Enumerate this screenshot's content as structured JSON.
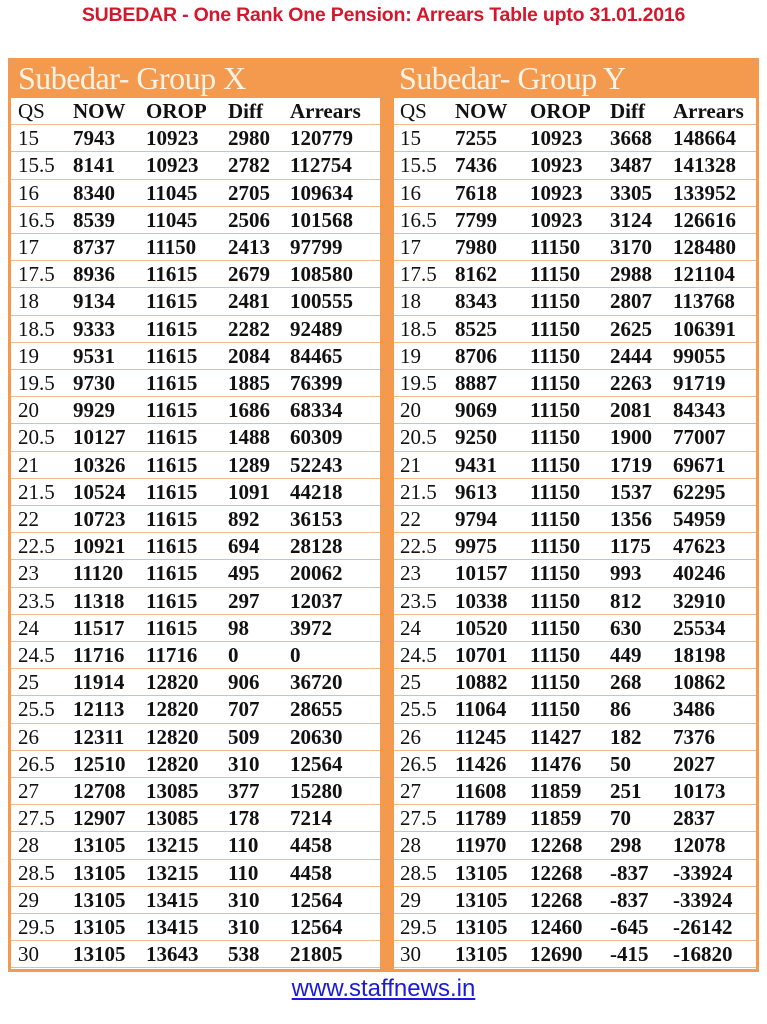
{
  "title": "SUBEDAR - One Rank One Pension: Arrears Table upto 31.01.2016",
  "colors": {
    "title": "#d3172c",
    "accent": "#f39a4e",
    "link": "#1a1adb"
  },
  "footer_link": "www.staffnews.in",
  "groups": [
    {
      "heading": "Subedar- Group X",
      "columns": [
        "QS",
        "NOW",
        "OROP",
        "Diff",
        "Arrears"
      ],
      "rows": [
        [
          "15",
          "7943",
          "10923",
          "2980",
          "120779"
        ],
        [
          "15.5",
          "8141",
          "10923",
          "2782",
          "112754"
        ],
        [
          "16",
          "8340",
          "11045",
          "2705",
          "109634"
        ],
        [
          "16.5",
          "8539",
          "11045",
          "2506",
          "101568"
        ],
        [
          "17",
          "8737",
          "11150",
          "2413",
          "97799"
        ],
        [
          "17.5",
          "8936",
          "11615",
          "2679",
          "108580"
        ],
        [
          "18",
          "9134",
          "11615",
          "2481",
          "100555"
        ],
        [
          "18.5",
          "9333",
          "11615",
          "2282",
          "92489"
        ],
        [
          "19",
          "9531",
          "11615",
          "2084",
          "84465"
        ],
        [
          "19.5",
          "9730",
          "11615",
          "1885",
          "76399"
        ],
        [
          "20",
          "9929",
          "11615",
          "1686",
          "68334"
        ],
        [
          "20.5",
          "10127",
          "11615",
          "1488",
          "60309"
        ],
        [
          "21",
          "10326",
          "11615",
          "1289",
          "52243"
        ],
        [
          "21.5",
          "10524",
          "11615",
          "1091",
          "44218"
        ],
        [
          "22",
          "10723",
          "11615",
          "892",
          "36153"
        ],
        [
          "22.5",
          "10921",
          "11615",
          "694",
          "28128"
        ],
        [
          "23",
          "11120",
          "11615",
          "495",
          "20062"
        ],
        [
          "23.5",
          "11318",
          "11615",
          "297",
          "12037"
        ],
        [
          "24",
          "11517",
          "11615",
          "98",
          "3972"
        ],
        [
          "24.5",
          "11716",
          "11716",
          "0",
          "0"
        ],
        [
          "25",
          "11914",
          "12820",
          "906",
          "36720"
        ],
        [
          "25.5",
          "12113",
          "12820",
          "707",
          "28655"
        ],
        [
          "26",
          "12311",
          "12820",
          "509",
          "20630"
        ],
        [
          "26.5",
          "12510",
          "12820",
          "310",
          "12564"
        ],
        [
          "27",
          "12708",
          "13085",
          "377",
          "15280"
        ],
        [
          "27.5",
          "12907",
          "13085",
          "178",
          "7214"
        ],
        [
          "28",
          "13105",
          "13215",
          "110",
          "4458"
        ],
        [
          "28.5",
          "13105",
          "13215",
          "110",
          "4458"
        ],
        [
          "29",
          "13105",
          "13415",
          "310",
          "12564"
        ],
        [
          "29.5",
          "13105",
          "13415",
          "310",
          "12564"
        ],
        [
          "30",
          "13105",
          "13643",
          "538",
          "21805"
        ]
      ]
    },
    {
      "heading": "Subedar- Group Y",
      "columns": [
        "QS",
        "NOW",
        "OROP",
        "Diff",
        "Arrears"
      ],
      "rows": [
        [
          "15",
          "7255",
          "10923",
          "3668",
          "148664"
        ],
        [
          "15.5",
          "7436",
          "10923",
          "3487",
          "141328"
        ],
        [
          "16",
          "7618",
          "10923",
          "3305",
          "133952"
        ],
        [
          "16.5",
          "7799",
          "10923",
          "3124",
          "126616"
        ],
        [
          "17",
          "7980",
          "11150",
          "3170",
          "128480"
        ],
        [
          "17.5",
          "8162",
          "11150",
          "2988",
          "121104"
        ],
        [
          "18",
          "8343",
          "11150",
          "2807",
          "113768"
        ],
        [
          "18.5",
          "8525",
          "11150",
          "2625",
          "106391"
        ],
        [
          "19",
          "8706",
          "11150",
          "2444",
          "99055"
        ],
        [
          "19.5",
          "8887",
          "11150",
          "2263",
          "91719"
        ],
        [
          "20",
          "9069",
          "11150",
          "2081",
          "84343"
        ],
        [
          "20.5",
          "9250",
          "11150",
          "1900",
          "77007"
        ],
        [
          "21",
          "9431",
          "11150",
          "1719",
          "69671"
        ],
        [
          "21.5",
          "9613",
          "11150",
          "1537",
          "62295"
        ],
        [
          "22",
          "9794",
          "11150",
          "1356",
          "54959"
        ],
        [
          "22.5",
          "9975",
          "11150",
          "1175",
          "47623"
        ],
        [
          "23",
          "10157",
          "11150",
          "993",
          "40246"
        ],
        [
          "23.5",
          "10338",
          "11150",
          "812",
          "32910"
        ],
        [
          "24",
          "10520",
          "11150",
          "630",
          "25534"
        ],
        [
          "24.5",
          "10701",
          "11150",
          "449",
          "18198"
        ],
        [
          "25",
          "10882",
          "11150",
          "268",
          "10862"
        ],
        [
          "25.5",
          "11064",
          "11150",
          "86",
          "3486"
        ],
        [
          "26",
          "11245",
          "11427",
          "182",
          "7376"
        ],
        [
          "26.5",
          "11426",
          "11476",
          "50",
          "2027"
        ],
        [
          "27",
          "11608",
          "11859",
          "251",
          "10173"
        ],
        [
          "27.5",
          "11789",
          "11859",
          "70",
          "2837"
        ],
        [
          "28",
          "11970",
          "12268",
          "298",
          "12078"
        ],
        [
          "28.5",
          "13105",
          "12268",
          "-837",
          "-33924"
        ],
        [
          "29",
          "13105",
          "12268",
          "-837",
          "-33924"
        ],
        [
          "29.5",
          "13105",
          "12460",
          "-645",
          "-26142"
        ],
        [
          "30",
          "13105",
          "12690",
          "-415",
          "-16820"
        ]
      ]
    }
  ]
}
